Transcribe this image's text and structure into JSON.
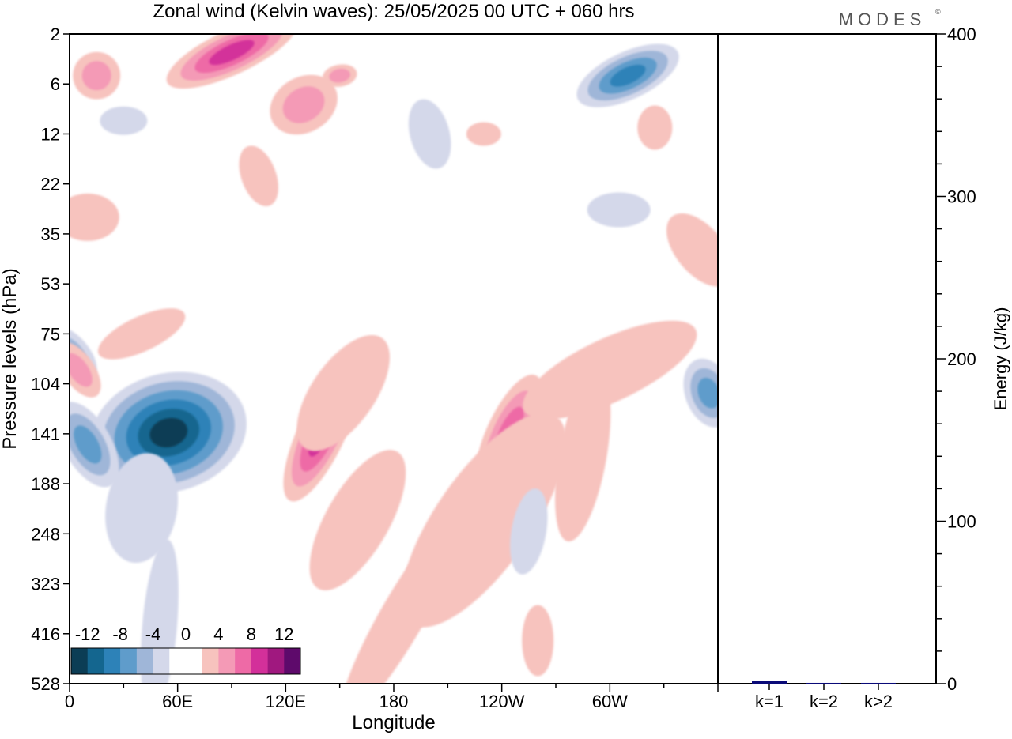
{
  "title": "Zonal wind (Kelvin waves):  25/05/2025  00 UTC  + 060 hrs",
  "brand": "MODES",
  "brand_mark": "©",
  "chart_data": [
    {
      "type": "heatmap",
      "xlabel": "Longitude",
      "ylabel": "Pressure levels (hPa)",
      "x_ticks": [
        "0",
        "60E",
        "120E",
        "180",
        "120W",
        "60W"
      ],
      "y_ticks": [
        "2",
        "6",
        "12",
        "22",
        "35",
        "53",
        "75",
        "104",
        "141",
        "188",
        "248",
        "323",
        "416",
        "528"
      ],
      "y_inverted": true,
      "colorbar": {
        "labels": [
          "-12",
          "-8",
          "-4",
          "0",
          "4",
          "8",
          "12"
        ],
        "colors": [
          "#0b3d55",
          "#14668f",
          "#2d82b8",
          "#5f9ccb",
          "#9fb6d8",
          "#d4d8ea",
          "#ffffff",
          "#ffffff",
          "#f7c3be",
          "#f49ab6",
          "#ee6aa6",
          "#d3309a",
          "#a0187f",
          "#5e0a6b"
        ]
      },
      "features": [
        {
          "sign": "negative",
          "peak": -13,
          "lon_range": [
            "10E",
            "75E"
          ],
          "p_range": [
            75,
            248
          ]
        },
        {
          "sign": "positive",
          "peak": 9,
          "lon_range": [
            "130E",
            "150E"
          ],
          "p_range": [
            104,
            188
          ]
        },
        {
          "sign": "positive",
          "peak": 9,
          "lon_range": [
            "130W",
            "110W"
          ],
          "p_range": [
            104,
            188
          ]
        },
        {
          "sign": "negative",
          "peak": -9,
          "lon_range": [
            "70W",
            "45W"
          ],
          "p_range": [
            2,
            8
          ]
        },
        {
          "sign": "negative",
          "peak": -7,
          "lon_range": [
            "20W",
            "0"
          ],
          "p_range": [
            75,
            141
          ]
        }
      ]
    },
    {
      "type": "bar",
      "categories": [
        "k=1",
        "k=2",
        "k>2"
      ],
      "values": [
        1.5,
        0.5,
        0.5
      ],
      "ylabel": "Energy (J/kg)",
      "ylim": [
        0,
        400
      ],
      "y_ticks": [
        "0",
        "100",
        "200",
        "300",
        "400"
      ],
      "bar_color": "#0a0a78"
    }
  ]
}
